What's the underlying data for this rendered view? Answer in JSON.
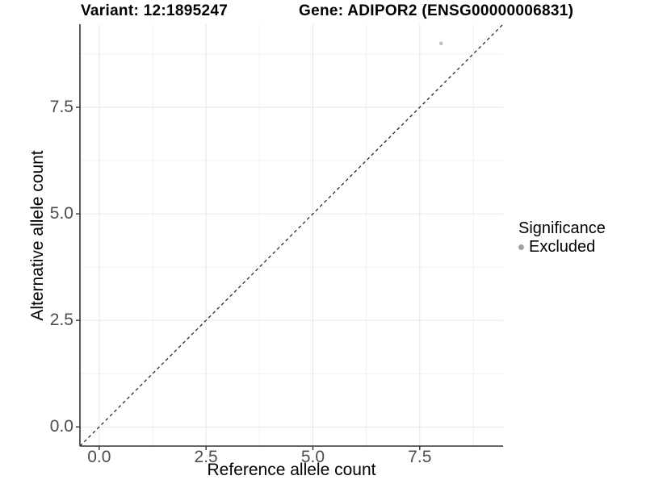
{
  "chart_data": {
    "type": "scatter",
    "title_left": "Variant: 12:1895247",
    "title_right": "Gene: ADIPOR2 (ENSG00000006831)",
    "xlabel": "Reference allele count",
    "ylabel": "Alternative allele count",
    "xlim": [
      -0.45,
      9.45
    ],
    "ylim": [
      -0.45,
      9.45
    ],
    "x_ticks": [
      0.0,
      2.5,
      5.0,
      7.5
    ],
    "x_tick_labels": [
      "0.0",
      "2.5",
      "5.0",
      "7.5"
    ],
    "y_ticks": [
      0.0,
      2.5,
      5.0,
      7.5
    ],
    "y_tick_labels": [
      "0.0",
      "2.5",
      "5.0",
      "7.5"
    ],
    "x_minor_ticks": [
      1.25,
      3.75,
      6.25,
      8.75
    ],
    "y_minor_ticks": [
      1.25,
      3.75,
      6.25,
      8.75
    ],
    "grid": true,
    "series": [
      {
        "name": "Excluded",
        "points": [
          {
            "x": 8,
            "y": 9
          }
        ],
        "color": "#c3c3c3",
        "point_radius": 2.4
      }
    ],
    "reference_line": {
      "type": "identity",
      "style": "dashed",
      "from": [
        -0.45,
        -0.45
      ],
      "to": [
        9.45,
        9.45
      ],
      "color": "#1a1a1a"
    },
    "legend": {
      "title": "Significance",
      "position": "right",
      "entries": [
        {
          "label": "Excluded",
          "color": "#a3a3a3"
        }
      ]
    },
    "colors": {
      "background": "#ffffff",
      "axis_line": "#333333",
      "tick_mark": "#333333",
      "tick_text": "#4d4d4d",
      "grid_major": "#e6e6e6",
      "grid_minor": "#f1f1f1"
    }
  }
}
